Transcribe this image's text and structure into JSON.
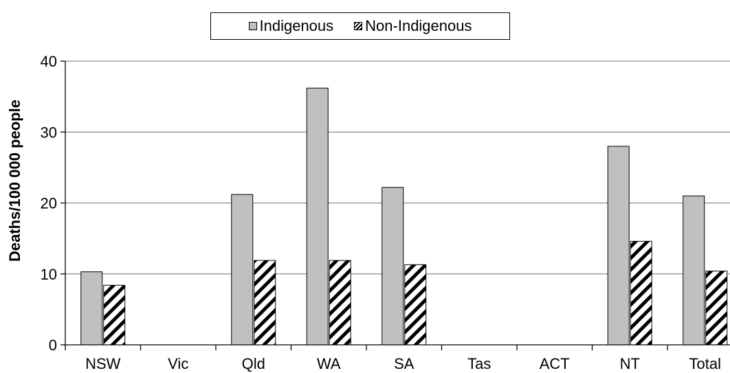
{
  "chart_data": {
    "type": "bar",
    "title": "",
    "xlabel": "",
    "ylabel": "Deaths/100 000 people",
    "ylim": [
      0,
      40
    ],
    "yticks": [
      0,
      10,
      20,
      30,
      40
    ],
    "grid": "horizontal",
    "legend_position": "top",
    "categories": [
      "NSW",
      "Vic",
      "Qld",
      "WA",
      "SA",
      "Tas",
      "ACT",
      "NT",
      "Total"
    ],
    "series": [
      {
        "name": "Indigenous",
        "style": "solid",
        "color": "#c0c0c0",
        "values": [
          10.3,
          null,
          21.2,
          36.2,
          22.2,
          null,
          null,
          28.0,
          21.0
        ]
      },
      {
        "name": "Non-Indigenous",
        "style": "hatched",
        "color": "#000000",
        "values": [
          8.4,
          null,
          11.9,
          11.9,
          11.3,
          null,
          null,
          14.6,
          10.4
        ]
      }
    ]
  }
}
